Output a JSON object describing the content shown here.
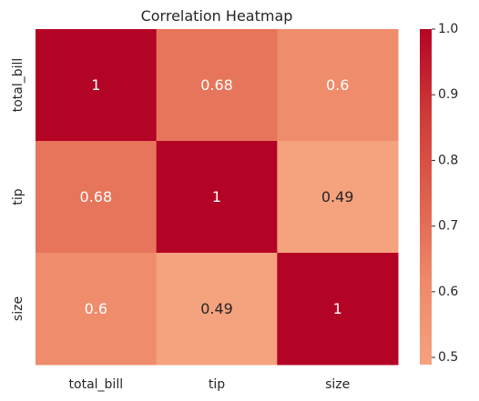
{
  "chart_data": {
    "type": "heatmap",
    "title": "Correlation Heatmap",
    "x_categories": [
      "total_bill",
      "tip",
      "size"
    ],
    "y_categories": [
      "total_bill",
      "tip",
      "size"
    ],
    "matrix": [
      [
        1.0,
        0.68,
        0.6
      ],
      [
        0.68,
        1.0,
        0.49
      ],
      [
        0.6,
        0.49,
        1.0
      ]
    ],
    "annotations": [
      [
        "1",
        "0.68",
        "0.6"
      ],
      [
        "0.68",
        "1",
        "0.49"
      ],
      [
        "0.6",
        "0.49",
        "1"
      ]
    ],
    "colorbar": {
      "range": [
        0.489,
        1.0
      ],
      "ticks": [
        "0.5",
        "0.6",
        "0.7",
        "0.8",
        "0.9",
        "1.0"
      ],
      "tick_values": [
        0.5,
        0.6,
        0.7,
        0.8,
        0.9,
        1.0
      ],
      "colormap": "coolwarm (upper half)",
      "color_low": "#f5a27e",
      "color_high": "#b40426"
    }
  }
}
